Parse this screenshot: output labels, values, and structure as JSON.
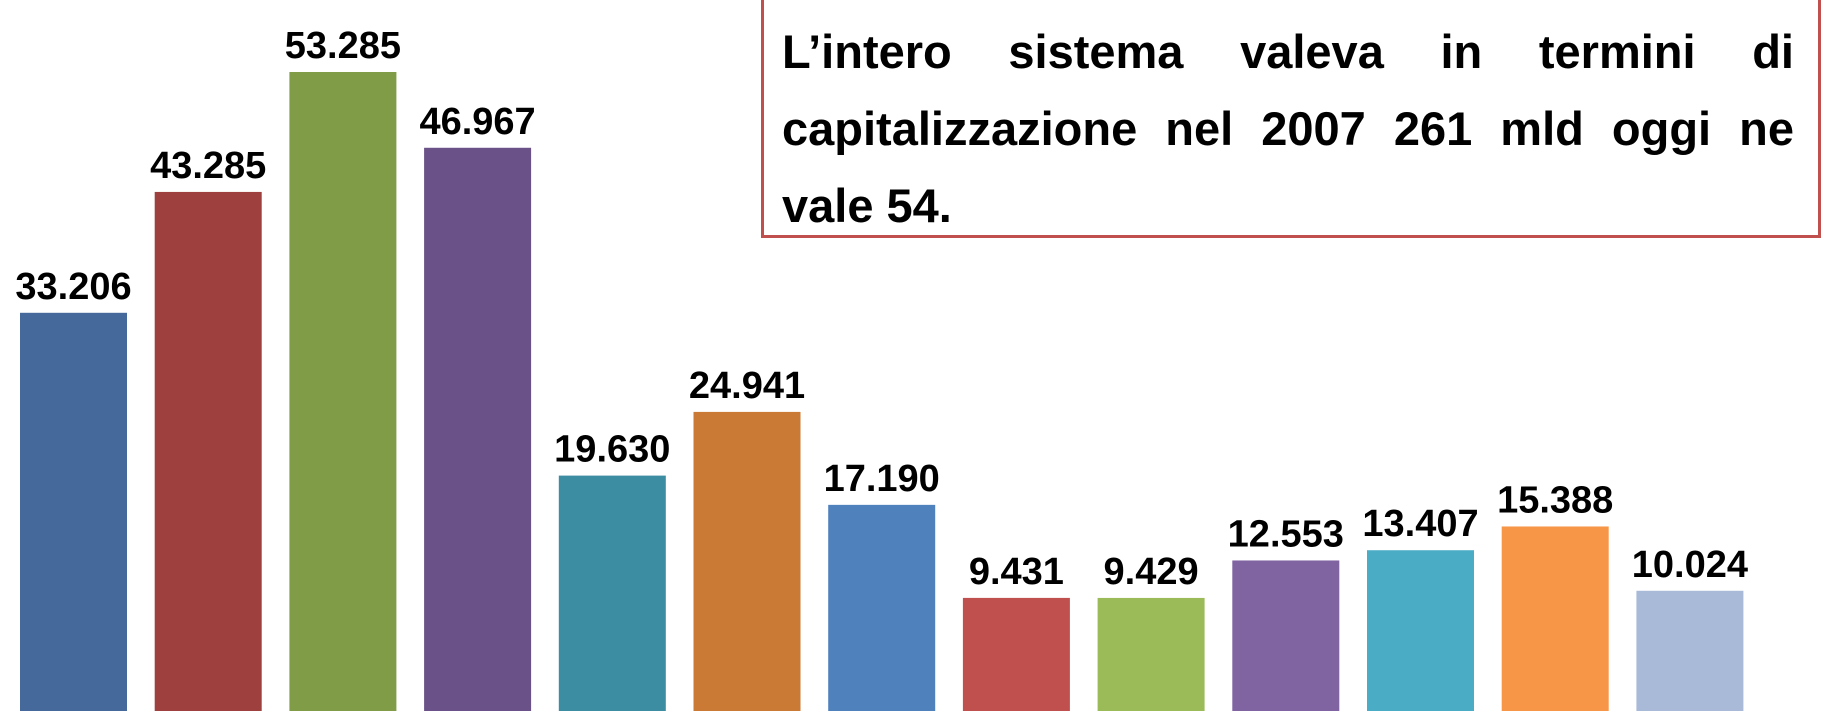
{
  "chart_data": {
    "type": "bar",
    "annotation": "L’intero sistema valeva in termini di capitalizzazione nel 2007 261 mld oggi ne vale 54.",
    "values": [
      33206,
      43285,
      53285,
      46967,
      19630,
      24941,
      17190,
      9431,
      9429,
      12553,
      13407,
      15388,
      10024
    ],
    "value_labels": [
      "33.206",
      "43.285",
      "53.285",
      "46.967",
      "19.630",
      "24.941",
      "17.190",
      "9.431",
      "9.429",
      "12.553",
      "13.407",
      "15.388",
      "10.024"
    ],
    "colors": [
      "#44699a",
      "#9e403e",
      "#809c47",
      "#6a5289",
      "#3c8ca2",
      "#cb7a36",
      "#4f81bd",
      "#c0504d",
      "#9bbb59",
      "#8064a2",
      "#4bacc6",
      "#f79646",
      "#a9bad9"
    ],
    "ylim": [
      0,
      59290
    ]
  }
}
